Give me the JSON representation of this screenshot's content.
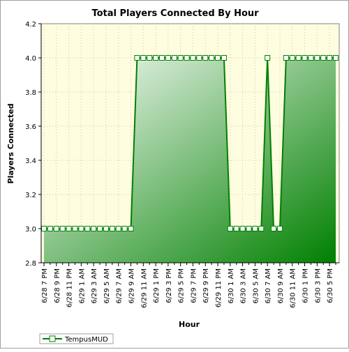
{
  "chart_data": {
    "type": "area",
    "title": "Total Players Connected By Hour",
    "xlabel": "Hour",
    "ylabel": "Players Connected",
    "ylim": [
      2.8,
      4.2
    ],
    "yticks": [
      "2.8",
      "3.0",
      "3.2",
      "3.4",
      "3.6",
      "3.8",
      "4.0",
      "4.2"
    ],
    "xtick_labels": [
      "6/28 7 PM",
      "6/28 9 PM",
      "6/28 11 PM",
      "6/29 1 AM",
      "6/29 3 AM",
      "6/29 5 AM",
      "6/29 7 AM",
      "6/29 9 AM",
      "6/29 11 AM",
      "6/29 1 PM",
      "6/29 3 PM",
      "6/29 5 PM",
      "6/29 7 PM",
      "6/29 9 PM",
      "6/29 11 PM",
      "6/30 1 AM",
      "6/30 3 AM",
      "6/30 5 AM",
      "6/30 7 AM",
      "6/30 9 AM",
      "6/30 11 AM",
      "6/30 1 PM",
      "6/30 3 PM",
      "6/30 5 PM"
    ],
    "grid": true,
    "legend_position": "bottom-left",
    "series": [
      {
        "name": "TempusMUD",
        "color": "#008000",
        "values": [
          3,
          3,
          3,
          3,
          3,
          3,
          3,
          3,
          3,
          3,
          3,
          3,
          3,
          3,
          3,
          4,
          4,
          4,
          4,
          4,
          4,
          4,
          4,
          4,
          4,
          4,
          4,
          4,
          4,
          4,
          3,
          3,
          3,
          3,
          3,
          3,
          4,
          3,
          3,
          4,
          4,
          4,
          4,
          4,
          4,
          4,
          4,
          4
        ]
      }
    ]
  },
  "colors": {
    "plot_bg": "#fffde0",
    "line": "#008000",
    "fill_light": "#f0f8f0",
    "fill_dark": "#008000"
  }
}
